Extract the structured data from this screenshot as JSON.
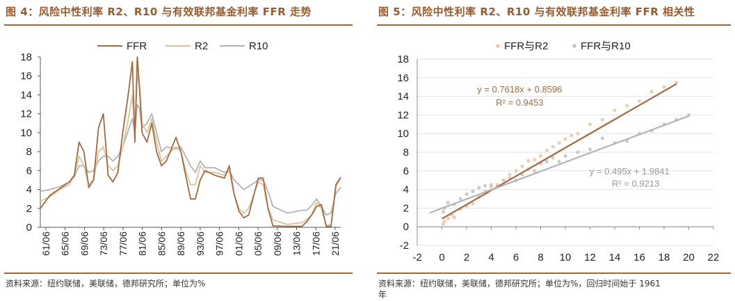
{
  "colors": {
    "ffr": "#a5693f",
    "r2": "#dcc39a",
    "r10": "#b3b3b3",
    "scatter_r2": "#e8c8aa",
    "scatter_r10": "#c4c4c4",
    "title": "#9a5b2e"
  },
  "left": {
    "title": "图 4：风险中性利率 R2、R10 与有效联邦基金利率 FFR 走势",
    "source": "资料来源：纽约联储，美联储，德邦研究所；单位为%"
  },
  "right": {
    "title": "图 5：风险中性利率 R2、R10 与有效联邦基金利率 FFR 相关性",
    "source_line1": "资料来源：纽约联储，美联储，德邦研究所；单位为%，回归时间始于 1961",
    "source_line2": "年"
  },
  "chart_data": [
    {
      "type": "line",
      "legend": [
        "FFR",
        "R2",
        "R10"
      ],
      "legend_position": "top",
      "ylim": [
        0,
        18
      ],
      "yticks": [
        "0",
        "2",
        "4",
        "6",
        "8",
        "10",
        "12",
        "14",
        "16",
        "18"
      ],
      "xticks": [
        "61/06",
        "65/06",
        "69/06",
        "73/06",
        "77/06",
        "81/06",
        "85/06",
        "89/06",
        "93/06",
        "97/06",
        "01/06",
        "05/06",
        "09/06",
        "13/06",
        "17/06",
        "21/06"
      ],
      "x_years": [
        1961,
        1963,
        1965,
        1967,
        1968,
        1969,
        1970,
        1971,
        1972,
        1973,
        1974,
        1975,
        1976,
        1977,
        1978,
        1979,
        1980,
        1980.5,
        1981,
        1981.5,
        1982,
        1983,
        1984,
        1985,
        1986,
        1987,
        1989,
        1990,
        1991,
        1992,
        1993,
        1994,
        1995,
        1997,
        1999,
        2000,
        2001,
        2002,
        2003,
        2004,
        2006,
        2007,
        2008,
        2009,
        2012,
        2015,
        2016,
        2017,
        2018,
        2019,
        2020,
        2021,
        2022,
        2023
      ],
      "series": [
        {
          "name": "FFR",
          "values": [
            2.0,
            3.4,
            4.1,
            4.8,
            5.5,
            9.0,
            8.0,
            4.2,
            5.0,
            10.5,
            12.0,
            5.5,
            4.8,
            5.8,
            10.0,
            13.5,
            17.5,
            9.0,
            18.0,
            14.5,
            10.0,
            9.0,
            11.0,
            8.0,
            6.5,
            7.0,
            9.5,
            8.0,
            5.5,
            3.0,
            3.0,
            5.0,
            6.0,
            5.5,
            5.2,
            6.5,
            3.5,
            1.7,
            1.0,
            1.3,
            5.2,
            5.2,
            2.0,
            0.15,
            0.1,
            0.1,
            0.6,
            1.3,
            2.2,
            2.4,
            0.1,
            0.1,
            4.5,
            5.3
          ]
        },
        {
          "name": "R2",
          "values": [
            2.8,
            3.2,
            4.0,
            4.5,
            5.5,
            7.5,
            6.5,
            4.5,
            5.0,
            8.0,
            8.5,
            6.5,
            6.0,
            6.5,
            8.5,
            11.0,
            14.0,
            10.0,
            16.0,
            15.0,
            11.0,
            10.0,
            11.5,
            9.0,
            7.0,
            7.5,
            8.5,
            8.0,
            6.0,
            4.5,
            4.5,
            6.5,
            5.8,
            5.8,
            5.5,
            6.0,
            3.5,
            2.0,
            1.5,
            2.0,
            4.8,
            4.5,
            2.0,
            0.8,
            0.3,
            0.5,
            0.8,
            1.3,
            2.6,
            2.0,
            0.2,
            0.3,
            4.3,
            5.2
          ]
        },
        {
          "name": "R10",
          "values": [
            3.8,
            4.0,
            4.3,
            4.8,
            5.3,
            6.5,
            6.5,
            5.8,
            6.0,
            7.0,
            7.5,
            7.5,
            7.0,
            7.5,
            8.5,
            10.0,
            11.5,
            10.0,
            13.0,
            12.5,
            10.5,
            11.0,
            12.0,
            10.0,
            8.0,
            8.5,
            8.3,
            8.5,
            7.5,
            6.5,
            5.8,
            7.0,
            6.3,
            6.3,
            5.8,
            6.0,
            5.0,
            4.5,
            4.0,
            4.3,
            5.0,
            5.0,
            3.8,
            2.2,
            1.5,
            1.8,
            1.8,
            2.3,
            3.0,
            2.2,
            1.3,
            1.5,
            3.6,
            4.2
          ]
        }
      ]
    },
    {
      "type": "scatter",
      "legend": [
        "FFR与R2",
        "FFR与R10"
      ],
      "legend_position": "top",
      "xlim": [
        -2,
        22
      ],
      "ylim": [
        -2,
        18
      ],
      "xticks": [
        "-2",
        "0",
        "2",
        "4",
        "6",
        "8",
        "10",
        "12",
        "14",
        "16",
        "18",
        "20",
        "22"
      ],
      "yticks": [
        "-2",
        "0",
        "2",
        "4",
        "6",
        "8",
        "10",
        "12",
        "14",
        "16",
        "18"
      ],
      "series": [
        {
          "name": "FFR与R2",
          "fit_slope": 0.7618,
          "fit_intercept": 0.8596,
          "fit_x_range": [
            0,
            19
          ],
          "points_x": [
            0.1,
            0.2,
            0.5,
            0.8,
            1.0,
            1.5,
            2.0,
            2.5,
            3.0,
            3.5,
            4.0,
            4.5,
            5.0,
            5.5,
            6.0,
            6.5,
            7.0,
            7.5,
            8.0,
            8.5,
            9.0,
            9.5,
            10.0,
            10.5,
            11.0,
            12.0,
            13.0,
            14.0,
            15.0,
            16.0,
            17.0,
            18.0,
            19.0
          ],
          "points_y": [
            0.3,
            0.6,
            0.9,
            1.3,
            1.0,
            1.9,
            2.2,
            2.5,
            3.2,
            3.8,
            4.3,
            4.5,
            5.0,
            5.6,
            6.0,
            6.5,
            7.1,
            7.2,
            7.6,
            8.2,
            8.6,
            9.0,
            9.4,
            9.8,
            10.0,
            11.0,
            11.5,
            12.5,
            13.0,
            13.5,
            14.5,
            15.0,
            15.5
          ],
          "annotation_line1": "y = 0.7618x + 0.8596",
          "annotation_line2": "R² = 0.9453"
        },
        {
          "name": "FFR与R10",
          "fit_slope": 0.495,
          "fit_intercept": 1.9841,
          "fit_x_range": [
            -1,
            20
          ],
          "points_x": [
            0.1,
            0.2,
            0.5,
            1.0,
            1.5,
            2.0,
            2.5,
            3.0,
            3.5,
            4.0,
            4.5,
            5.0,
            5.5,
            6.0,
            6.5,
            7.0,
            7.5,
            8.0,
            8.5,
            9.0,
            9.5,
            10.0,
            11.0,
            12.0,
            13.0,
            14.0,
            15.0,
            16.0,
            17.0,
            18.0,
            19.0,
            20.0
          ],
          "points_y": [
            1.6,
            2.0,
            2.6,
            2.4,
            3.0,
            3.5,
            3.8,
            4.2,
            4.4,
            4.5,
            4.4,
            5.0,
            5.2,
            5.0,
            5.6,
            6.2,
            6.0,
            6.8,
            7.0,
            7.4,
            7.0,
            7.6,
            8.0,
            8.3,
            9.5,
            9.0,
            9.2,
            10.0,
            10.3,
            11.0,
            11.5,
            12.0
          ],
          "annotation_line1": "y = 0.495x + 1.9841",
          "annotation_line2": "R² = 0.9213"
        }
      ]
    }
  ]
}
